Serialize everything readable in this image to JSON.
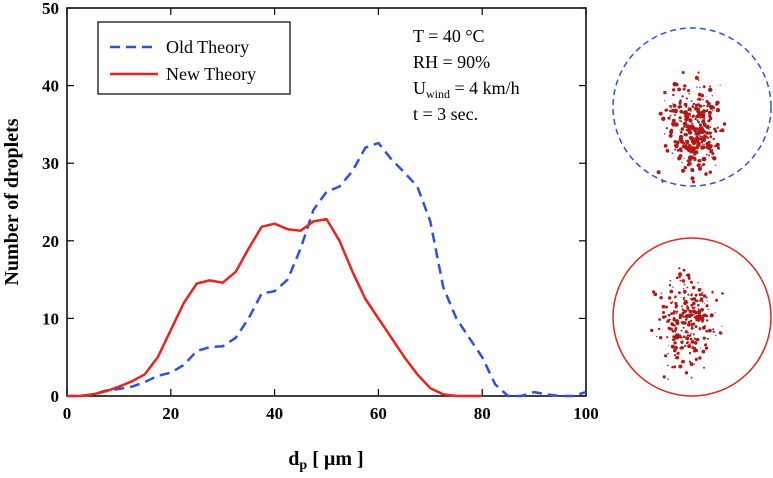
{
  "chart_data": {
    "type": "line",
    "xlabel": {
      "main": "d",
      "sub": "p",
      "rest": " [ µm ]"
    },
    "ylabel": "Number of droplets",
    "x": [
      0,
      2.5,
      5,
      7.5,
      10,
      12.5,
      15,
      17.5,
      20,
      22.5,
      25,
      27.5,
      30,
      32.5,
      35,
      37.5,
      40,
      42.5,
      45,
      47.5,
      50,
      52.5,
      55,
      57.5,
      60,
      62.5,
      65,
      67.5,
      70,
      72.5,
      75,
      77.5,
      80,
      82.5,
      85,
      87.5,
      90,
      92.5,
      95,
      97.5,
      100
    ],
    "series": [
      {
        "name": "Old Theory",
        "color": "#3050e0",
        "dash": true,
        "values": [
          0,
          0,
          0.2,
          0.7,
          0.9,
          1.2,
          1.8,
          2.6,
          3,
          4,
          5.8,
          6.3,
          6.4,
          7.5,
          10,
          13.2,
          13.5,
          15,
          19,
          24,
          26.3,
          27,
          29,
          32,
          32.6,
          30.5,
          28.8,
          27,
          22.5,
          14,
          10,
          7.5,
          5,
          1.5,
          0,
          0,
          0.5,
          0.2,
          0,
          0,
          0.5
        ]
      },
      {
        "name": "New Theory",
        "color": "#e8241c",
        "dash": false,
        "values": [
          0,
          0,
          0.2,
          0.6,
          1.2,
          1.9,
          2.8,
          5,
          8.5,
          12,
          14.5,
          14.9,
          14.6,
          16,
          19,
          21.8,
          22.2,
          21.5,
          21.3,
          22.5,
          22.8,
          20,
          16,
          12.5,
          10,
          7.5,
          5,
          2.8,
          1,
          0.2,
          0,
          0,
          0,
          null,
          null,
          null,
          null,
          null,
          null,
          null,
          null
        ]
      }
    ],
    "xlim": [
      0,
      100
    ],
    "xticks": [
      0,
      20,
      40,
      60,
      80,
      100
    ],
    "ylim": [
      0,
      50
    ],
    "yticks": [
      0,
      10,
      20,
      30,
      40,
      50
    ],
    "annotations": [
      {
        "main": "T = 40 °C"
      },
      {
        "main": "RH = 90%"
      },
      {
        "main": "U",
        "sub": "wind",
        "rest": " = 4 km/h"
      },
      {
        "main": "t = 3 sec."
      }
    ]
  }
}
